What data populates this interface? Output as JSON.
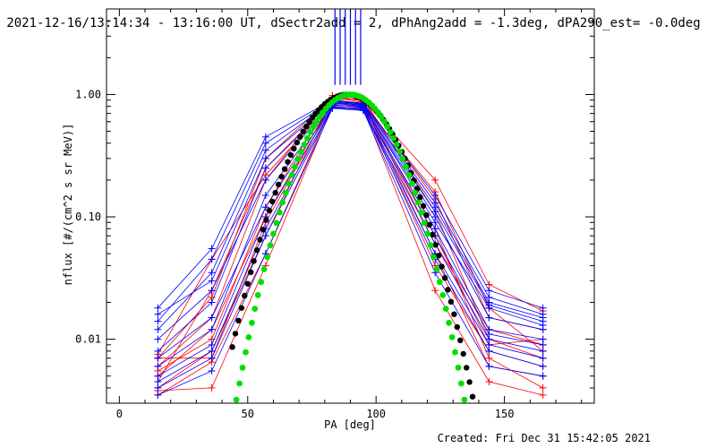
{
  "chart_data": {
    "type": "line",
    "title": "2021-12-16/13:14:34 - 13:16:00 UT, dSectr2add = 2, dPhAng2add = -1.3deg, dPA290_est= -0.0deg",
    "xlabel": "PA [deg]",
    "ylabel": "nflux [#/(cm^2 s sr MeV)]",
    "xlim": [
      -5,
      185
    ],
    "ylim": [
      0.003,
      5
    ],
    "yscale": "log",
    "x_ticks": [
      0,
      50,
      100,
      150
    ],
    "x_tick_labels": [
      "0",
      "50",
      "100",
      "150"
    ],
    "y_ticks": [
      0.01,
      0.1,
      1.0
    ],
    "y_tick_labels": [
      "0.01",
      "0.10",
      "1.00"
    ],
    "grid": false,
    "legend": "none",
    "colors": {
      "red": "#ff0000",
      "blue": "#0000ff",
      "black": "#000000",
      "green": "#00e000"
    },
    "red_series": [
      {
        "x": [
          15,
          36,
          57,
          83,
          95,
          123,
          144,
          165
        ],
        "y": [
          0.007,
          0.022,
          0.3,
          0.95,
          0.9,
          0.2,
          0.028,
          0.017
        ]
      },
      {
        "x": [
          15,
          36,
          57,
          83,
          95,
          123,
          144,
          165
        ],
        "y": [
          0.005,
          0.012,
          0.1,
          0.88,
          0.85,
          0.06,
          0.012,
          0.009
        ]
      },
      {
        "x": [
          15,
          36,
          57,
          83,
          95,
          123,
          144,
          165
        ],
        "y": [
          0.0035,
          0.0065,
          0.05,
          0.82,
          0.8,
          0.04,
          0.008,
          0.006
        ]
      },
      {
        "x": [
          15,
          36,
          57,
          83,
          95,
          123,
          144,
          165
        ],
        "y": [
          0.004,
          0.008,
          0.07,
          0.92,
          0.78,
          0.08,
          0.007,
          0.004
        ]
      },
      {
        "x": [
          15,
          36,
          57,
          83,
          95,
          123,
          144,
          165
        ],
        "y": [
          0.006,
          0.015,
          0.2,
          0.98,
          0.88,
          0.14,
          0.015,
          0.012
        ]
      },
      {
        "x": [
          15,
          36,
          57,
          83,
          95,
          123,
          144,
          165
        ],
        "y": [
          0.0045,
          0.025,
          0.25,
          0.9,
          0.93,
          0.11,
          0.01,
          0.007
        ]
      },
      {
        "x": [
          15,
          36,
          57,
          83,
          95,
          123,
          144,
          165
        ],
        "y": [
          0.0075,
          0.045,
          0.22,
          0.86,
          0.82,
          0.16,
          0.018,
          0.008
        ]
      },
      {
        "x": [
          15,
          36,
          57,
          83,
          95,
          123,
          144,
          165
        ],
        "y": [
          0.0038,
          0.004,
          0.04,
          0.8,
          0.77,
          0.025,
          0.0045,
          0.0035
        ]
      },
      {
        "x": [
          15,
          36,
          57,
          83,
          95,
          123,
          144,
          165
        ],
        "y": [
          0.007,
          0.007,
          0.09,
          0.84,
          0.83,
          0.05,
          0.006,
          0.005
        ]
      },
      {
        "x": [
          15,
          36,
          57,
          83,
          95,
          123,
          144,
          165
        ],
        "y": [
          0.0055,
          0.01,
          0.12,
          0.95,
          0.86,
          0.07,
          0.009,
          0.01
        ]
      }
    ],
    "blue_series": [
      {
        "x": [
          15,
          36,
          57,
          83,
          95,
          123,
          144,
          165
        ],
        "y": [
          0.018,
          0.055,
          0.45,
          0.9,
          0.85,
          0.15,
          0.025,
          0.018
        ]
      },
      {
        "x": [
          15,
          36,
          57,
          83,
          95,
          123,
          144,
          165
        ],
        "y": [
          0.012,
          0.035,
          0.35,
          0.88,
          0.83,
          0.12,
          0.02,
          0.015
        ]
      },
      {
        "x": [
          15,
          36,
          57,
          83,
          95,
          123,
          144,
          165
        ],
        "y": [
          0.008,
          0.02,
          0.25,
          0.85,
          0.8,
          0.1,
          0.015,
          0.012
        ]
      },
      {
        "x": [
          15,
          36,
          57,
          83,
          95,
          123,
          144,
          165
        ],
        "y": [
          0.006,
          0.012,
          0.15,
          0.83,
          0.78,
          0.08,
          0.012,
          0.01
        ]
      },
      {
        "x": [
          15,
          36,
          57,
          83,
          95,
          123,
          144,
          165
        ],
        "y": [
          0.005,
          0.009,
          0.1,
          0.8,
          0.76,
          0.06,
          0.01,
          0.008
        ]
      },
      {
        "x": [
          15,
          36,
          57,
          83,
          95,
          123,
          144,
          165
        ],
        "y": [
          0.004,
          0.007,
          0.07,
          0.78,
          0.75,
          0.045,
          0.008,
          0.006
        ]
      },
      {
        "x": [
          15,
          36,
          57,
          83,
          95,
          123,
          144,
          165
        ],
        "y": [
          0.0035,
          0.0055,
          0.05,
          0.77,
          0.74,
          0.035,
          0.006,
          0.005
        ]
      },
      {
        "x": [
          15,
          36,
          57,
          83,
          95,
          123,
          144,
          165
        ],
        "y": [
          0.01,
          0.025,
          0.2,
          0.86,
          0.82,
          0.09,
          0.018,
          0.013
        ]
      },
      {
        "x": [
          15,
          36,
          57,
          83,
          95,
          123,
          144,
          165
        ],
        "y": [
          0.014,
          0.045,
          0.4,
          0.89,
          0.84,
          0.13,
          0.022,
          0.016
        ]
      },
      {
        "x": [
          15,
          36,
          57,
          83,
          95,
          123,
          144,
          165
        ],
        "y": [
          0.007,
          0.015,
          0.12,
          0.82,
          0.79,
          0.07,
          0.011,
          0.009
        ]
      },
      {
        "x": [
          15,
          36,
          57,
          83,
          95,
          123,
          144,
          165
        ],
        "y": [
          0.0045,
          0.008,
          0.08,
          0.79,
          0.77,
          0.05,
          0.009,
          0.007
        ]
      },
      {
        "x": [
          15,
          36,
          57,
          83,
          95,
          123,
          144,
          165
        ],
        "y": [
          0.016,
          0.03,
          0.3,
          0.87,
          0.81,
          0.11,
          0.019,
          0.014
        ]
      }
    ],
    "blue_band_x": [
      84,
      86,
      88,
      90,
      92,
      94
    ],
    "blue_band_y": [
      1.2,
      5
    ],
    "black_fit": {
      "mu": 88.7,
      "sigma": 14.5,
      "amplitude": 1.0,
      "x_range": [
        44,
        141
      ]
    },
    "green_fit": {
      "mu": 90.0,
      "sigma": 13.1,
      "amplitude": 1.0,
      "x_range": [
        42,
        136
      ]
    },
    "footer": "Created: Fri Dec 31 15:42:05 2021"
  }
}
